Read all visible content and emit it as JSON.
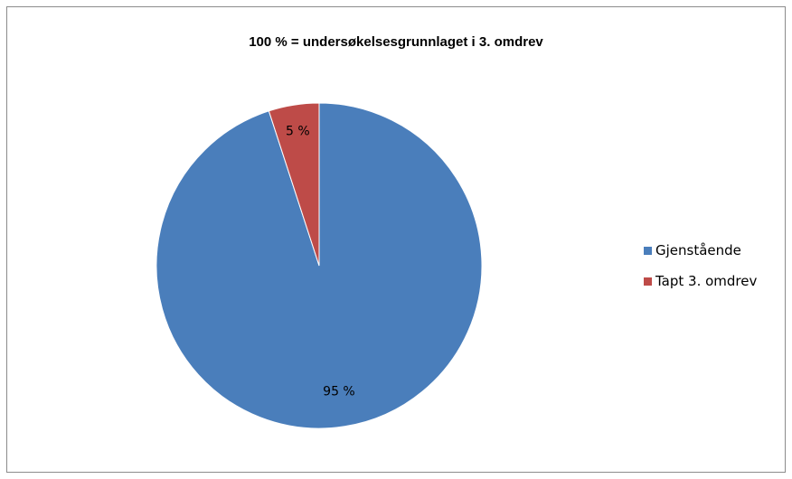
{
  "chart_data": {
    "type": "pie",
    "title": "100 % = undersøkelsesgrunnlaget i 3. omdrev",
    "categories": [
      "Gjenstående",
      "Tapt 3. omdrev"
    ],
    "values": [
      95,
      5
    ],
    "labels": [
      "95 %",
      "5 %"
    ],
    "colors": [
      "#4a7ebb",
      "#be4b48"
    ],
    "legend": "right"
  }
}
